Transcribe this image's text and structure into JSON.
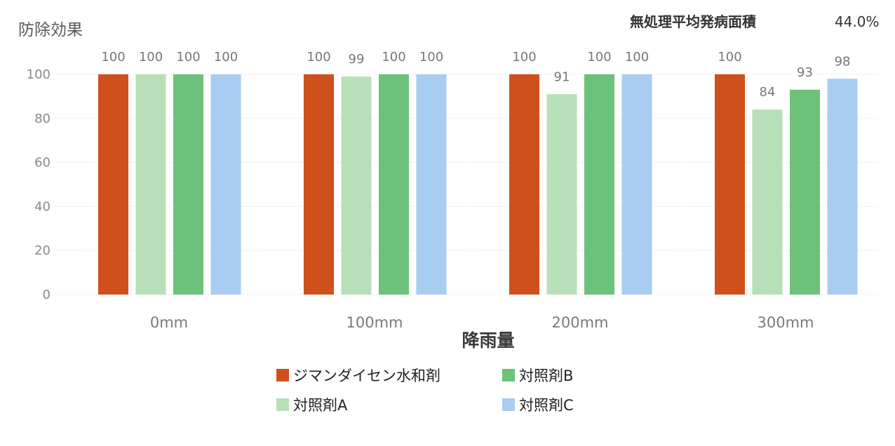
{
  "chart_data": {
    "type": "bar",
    "ylabel": "防除効果",
    "xlabel": "降雨量",
    "note_label": "無処理平均発病面積",
    "note_value": "44.0%",
    "categories": [
      "0mm",
      "100mm",
      "200mm",
      "300mm"
    ],
    "ylim": [
      0,
      100
    ],
    "yticks": [
      0,
      20,
      40,
      60,
      80,
      100
    ],
    "grid": true,
    "legend_position": "bottom",
    "series": [
      {
        "name": "ジマンダイセン水和剤",
        "color": "#d0501c",
        "values": [
          100,
          100,
          100,
          100
        ]
      },
      {
        "name": "対照剤A",
        "color": "#b8e0b8",
        "values": [
          100,
          99,
          91,
          84
        ]
      },
      {
        "name": "対照剤B",
        "color": "#6cc27a",
        "values": [
          100,
          100,
          100,
          93
        ]
      },
      {
        "name": "対照剤C",
        "color": "#a8cdf0",
        "values": [
          100,
          100,
          100,
          98
        ]
      }
    ]
  }
}
